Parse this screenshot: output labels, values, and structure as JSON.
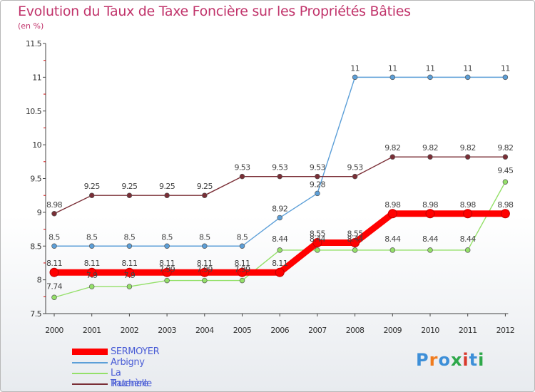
{
  "title": "Evolution du Taux de Taxe Foncière sur les Propriétés Bâties",
  "unit": "(en %)",
  "logo": {
    "text": "Proxiti",
    "letter_colors": [
      "#3d8fd8",
      "#f07b1d",
      "#3d8fd8",
      "#2ea84a",
      "#d8392c",
      "#3d8fd8",
      "#2ea84a"
    ]
  },
  "chart_data": {
    "type": "line",
    "title": "Evolution du Taux de Taxe Foncière sur les Propriétés Bâties",
    "ylabel": "(en %)",
    "x": [
      "2000",
      "2001",
      "2002",
      "2003",
      "2004",
      "2005",
      "2006",
      "2007",
      "2008",
      "2009",
      "2010",
      "2011",
      "2012"
    ],
    "ylim": [
      7.5,
      11.5
    ],
    "yticks": [
      "7.5",
      "8",
      "8.5",
      "9",
      "9.5",
      "10",
      "10.5",
      "11",
      "11.5"
    ],
    "grid": false,
    "legend_position": "bottom-left",
    "series": [
      {
        "name": "SERMOYER",
        "color": "#ff0000",
        "values": [
          8.11,
          8.11,
          8.11,
          8.11,
          8.11,
          8.11,
          8.11,
          8.55,
          8.55,
          8.98,
          8.98,
          8.98,
          8.98
        ],
        "labels": [
          "8.11",
          "8.11",
          "8.11",
          "8.11",
          "8.11",
          "8.11",
          "8.11",
          "8.55",
          "8.55",
          "8.98",
          "8.98",
          "8.98",
          "8.98"
        ]
      },
      {
        "name": "Arbigny",
        "color": "#5c9fd8",
        "values": [
          8.5,
          8.5,
          8.5,
          8.5,
          8.5,
          8.5,
          8.92,
          9.28,
          11,
          11,
          11,
          11,
          11
        ],
        "labels": [
          "8.5",
          "8.5",
          "8.5",
          "8.5",
          "8.5",
          "8.5",
          "8.92",
          "9.28",
          "11",
          "11",
          "11",
          "11",
          "11"
        ]
      },
      {
        "name": "La Truchère",
        "color": "#94e069",
        "values": [
          7.74,
          7.9,
          7.9,
          7.99,
          7.99,
          7.99,
          8.44,
          8.44,
          8.44,
          8.44,
          8.44,
          8.44,
          9.45
        ],
        "labels": [
          "7.74",
          "7.9",
          "7.9",
          "7.99",
          "7.99",
          "7.99",
          "8.44",
          "8.44",
          "8.44",
          "8.44",
          "8.44",
          "8.44",
          "9.45"
        ]
      },
      {
        "name": "Ratenelle",
        "color": "#7a2e36",
        "values": [
          8.98,
          9.25,
          9.25,
          9.25,
          9.25,
          9.53,
          9.53,
          9.53,
          9.53,
          9.82,
          9.82,
          9.82,
          9.82
        ],
        "labels": [
          "8.98",
          "9.25",
          "9.25",
          "9.25",
          "9.25",
          "9.53",
          "9.53",
          "9.53",
          "9.53",
          "9.82",
          "9.82",
          "9.82",
          "9.82"
        ]
      }
    ]
  }
}
